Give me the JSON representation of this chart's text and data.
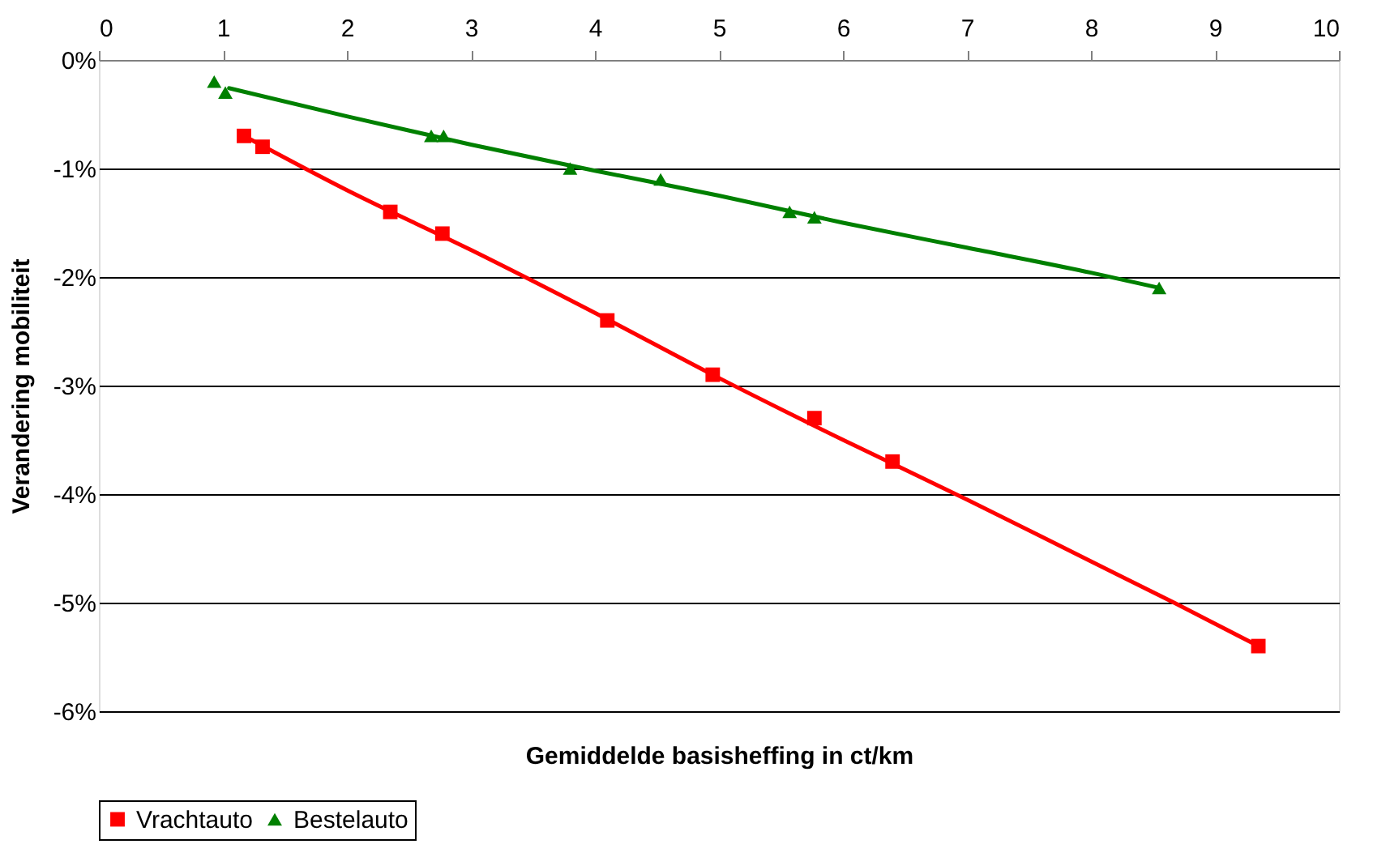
{
  "chart_data": {
    "type": "scatter",
    "xlabel": "Gemiddelde basisheffing in ct/km",
    "ylabel": "Verandering mobiliteit",
    "xlim": [
      0,
      10
    ],
    "xticks": [
      0,
      1,
      2,
      3,
      4,
      5,
      6,
      7,
      8,
      9,
      10
    ],
    "ylim": [
      -6,
      0
    ],
    "yticks": [
      {
        "value": 0,
        "label": "0%"
      },
      {
        "value": -1,
        "label": "-1%"
      },
      {
        "value": -2,
        "label": "-2%"
      },
      {
        "value": -3,
        "label": "-3%"
      },
      {
        "value": -4,
        "label": "-4%"
      },
      {
        "value": -5,
        "label": "-5%"
      },
      {
        "value": -6,
        "label": "-6%"
      }
    ],
    "grid": "y",
    "legend": "bottom",
    "series": [
      {
        "name": "Vrachtauto",
        "type": "scatter",
        "marker": "square",
        "color": "#ff0000",
        "x": [
          1.17,
          1.32,
          2.35,
          2.77,
          4.1,
          4.95,
          5.77,
          6.4,
          9.35
        ],
        "values": [
          -0.7,
          -0.8,
          -1.4,
          -1.6,
          -2.4,
          -2.9,
          -3.3,
          -3.7,
          -5.4
        ]
      },
      {
        "name": "Bestelauto",
        "type": "scatter",
        "marker": "triangle",
        "color": "#008000",
        "x": [
          0.93,
          1.02,
          2.68,
          2.78,
          3.8,
          4.53,
          5.57,
          5.77,
          8.55
        ],
        "values": [
          -0.2,
          -0.3,
          -0.7,
          -0.7,
          -1.0,
          -1.1,
          -1.4,
          -1.45,
          -2.1
        ]
      },
      {
        "type": "line",
        "color": "#ff0000",
        "x": [
          1.17,
          2,
          3,
          4,
          5,
          6,
          7,
          8,
          8.67,
          9.35
        ],
        "values": [
          -0.7,
          -1.2,
          -1.75,
          -2.33,
          -2.93,
          -3.5,
          -4.05,
          -4.62,
          -5.0,
          -5.4
        ]
      },
      {
        "type": "line",
        "color": "#008000",
        "x": [
          1.05,
          2,
          3,
          4,
          5,
          6,
          7,
          8,
          8.55
        ],
        "values": [
          -0.26,
          -0.52,
          -0.78,
          -1.02,
          -1.25,
          -1.5,
          -1.73,
          -1.96,
          -2.1
        ]
      }
    ]
  }
}
